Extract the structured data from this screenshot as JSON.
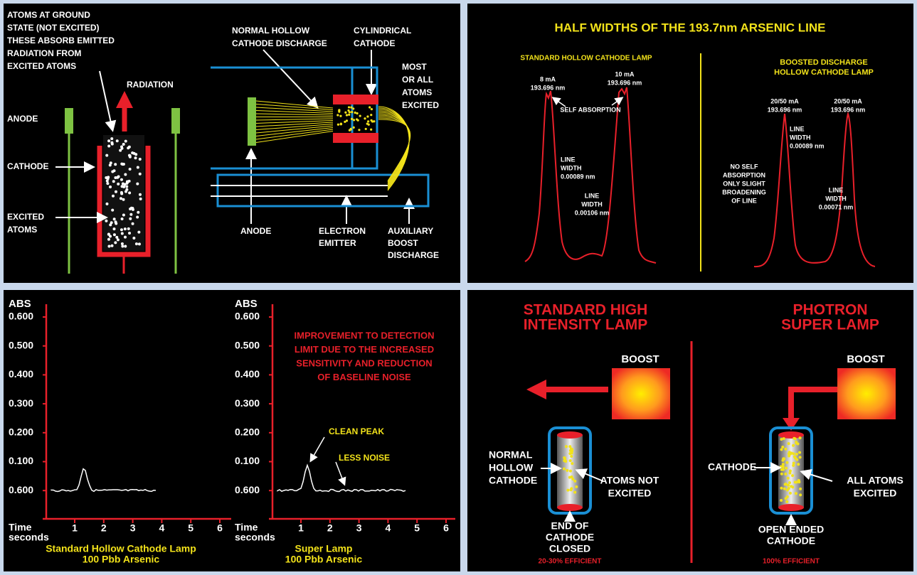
{
  "top_left": {
    "ground_state": [
      "ATOMS AT GROUND",
      "STATE (NOT EXCITED)",
      "THESE ABSORB EMITTED",
      "RADIATION FROM",
      "EXCITED ATOMS"
    ],
    "radiation": "RADIATION",
    "anode_left": "ANODE",
    "cathode_left": "CATHODE",
    "excited_atoms": [
      "EXCITED",
      "ATOMS"
    ],
    "normal_discharge": [
      "NORMAL HOLLOW",
      "CATHODE DISCHARGE"
    ],
    "cylindrical_cathode": [
      "CYLINDRICAL",
      "CATHODE"
    ],
    "most_excited": [
      "MOST",
      "OR ALL",
      "ATOMS",
      "EXCITED"
    ],
    "anode": "ANODE",
    "electron_emitter": [
      "ELECTRON",
      "EMITTER"
    ],
    "auxiliary": [
      "AUXILIARY",
      "BOOST",
      "DISCHARGE"
    ]
  },
  "top_right": {
    "title": "HALF WIDTHS OF THE 193.7nm ARSENIC LINE",
    "standard_heading": "STANDARD HOLLOW CATHODE LAMP",
    "boosted_heading": [
      "BOOSTED DISCHARGE",
      "HOLLOW CATHODE LAMP"
    ],
    "peak1": [
      "8 mA",
      "193.696 nm"
    ],
    "peak2": [
      "10 mA",
      "193.696 nm"
    ],
    "self_absorption": "SELF ABSORPTION",
    "width1": [
      "LINE",
      "WIDTH",
      "0.00089 nm"
    ],
    "width2": [
      "LINE",
      "WIDTH",
      "0.00106 nm"
    ],
    "peak3": [
      "20/50 mA",
      "193.696 nm"
    ],
    "peak4": [
      "20/50 mA",
      "193.696 nm"
    ],
    "width3": [
      "LINE",
      "WIDTH",
      "0.00089 nm"
    ],
    "no_self": [
      "NO SELF",
      "ABSORPTION",
      "ONLY SLIGHT",
      "BROADENING",
      "OF LINE"
    ],
    "width4": [
      "LINE",
      "WIDTH",
      "0.00071 nm"
    ]
  },
  "bottom_left": {
    "charts": [
      {
        "y_label": "ABS",
        "yticks": [
          "0.600",
          "0.500",
          "0.400",
          "0.300",
          "0.200",
          "0.100",
          "0.600"
        ],
        "xticks": [
          "1",
          "2",
          "3",
          "4",
          "5",
          "6"
        ],
        "x_label": [
          "Time",
          "seconds"
        ],
        "caption": [
          "Standard Hollow Cathode Lamp",
          "100 Pbb Arsenic"
        ]
      },
      {
        "y_label": "ABS",
        "yticks": [
          "0.600",
          "0.500",
          "0.400",
          "0.300",
          "0.200",
          "0.100",
          "0.600"
        ],
        "xticks": [
          "1",
          "2",
          "3",
          "4",
          "5",
          "6"
        ],
        "x_label": [
          "Time",
          "seconds"
        ],
        "caption": [
          "Super Lamp",
          "100 Pbb Arsenic"
        ],
        "annotation": [
          "IMPROVEMENT TO DETECTION",
          "LIMIT DUE TO THE INCREASED",
          "SENSITIVITY AND REDUCTION",
          "OF BASELINE NOISE"
        ],
        "clean_peak": "CLEAN PEAK",
        "less_noise": "LESS NOISE"
      }
    ]
  },
  "bottom_right": {
    "standard_title": [
      "STANDARD HIGH",
      "INTENSITY LAMP"
    ],
    "photron_title": [
      "PHOTRON",
      "SUPER LAMP"
    ],
    "boost_left": "BOOST",
    "boost_right": "BOOST",
    "normal_hollow": [
      "NORMAL",
      "HOLLOW",
      "CATHODE"
    ],
    "atoms_not": [
      "ATOMS NOT",
      "EXCITED"
    ],
    "end_closed": [
      "END OF",
      "CATHODE",
      "CLOSED"
    ],
    "eff_left": "20-30% EFFICIENT",
    "cathode": "CATHODE",
    "all_atoms": [
      "ALL ATOMS",
      "EXCITED"
    ],
    "open_ended": [
      "OPEN ENDED",
      "CATHODE"
    ],
    "eff_right": "100% EFFICIENT"
  }
}
